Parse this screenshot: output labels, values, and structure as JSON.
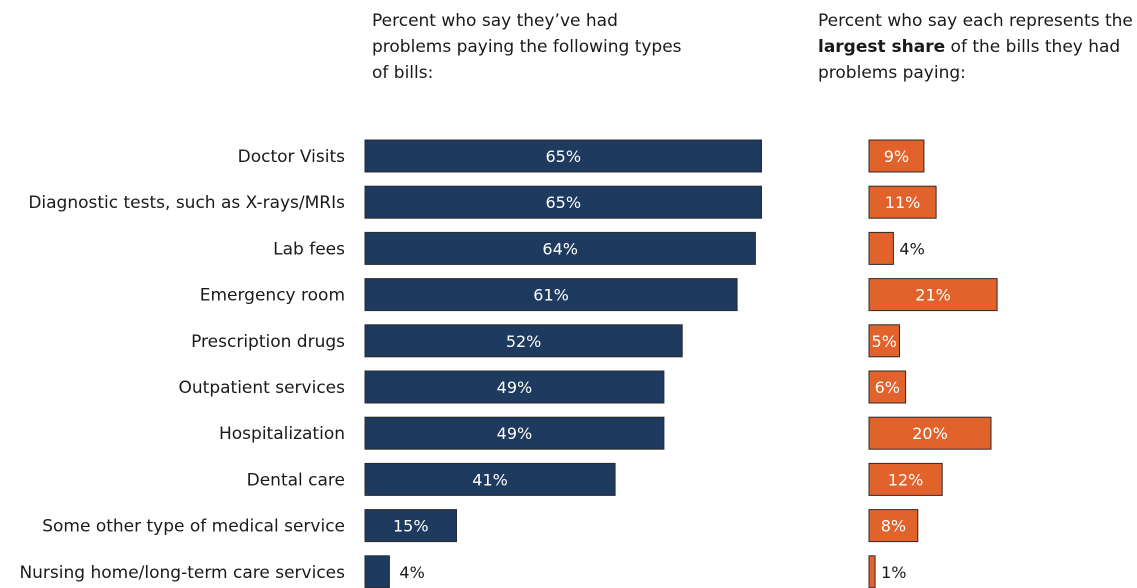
{
  "headings": {
    "left": "Percent who say they’ve had problems paying the following types of bills:",
    "right_pre": "Percent who say each represents the ",
    "right_bold": "largest share",
    "right_post": " of the bills they had problems paying:"
  },
  "colors": {
    "navy": "#1e3a5f",
    "orange": "#e2622b",
    "label_inside": "#ffffff",
    "label_outside": "#1a1a1a"
  },
  "chart_data": [
    {
      "type": "bar",
      "orientation": "horizontal",
      "categories": [
        "Doctor Visits",
        "Diagnostic tests, such as X-rays/MRIs",
        "Lab fees",
        "Emergency room",
        "Prescription drugs",
        "Outpatient services",
        "Hospitalization",
        "Dental care",
        "Some other type of medical service",
        "Nursing home/long-term care services"
      ],
      "values": [
        65,
        65,
        64,
        61,
        52,
        49,
        49,
        41,
        15,
        4
      ],
      "labels": [
        "65%",
        "65%",
        "64%",
        "61%",
        "52%",
        "49%",
        "49%",
        "41%",
        "15%",
        "4%"
      ],
      "color": "#1e3a5f"
    },
    {
      "type": "bar",
      "orientation": "horizontal",
      "categories": [
        "Doctor Visits",
        "Diagnostic tests, such as X-rays/MRIs",
        "Lab fees",
        "Emergency room",
        "Prescription drugs",
        "Outpatient services",
        "Hospitalization",
        "Dental care",
        "Some other type of medical service",
        "Nursing home/long-term care services"
      ],
      "values": [
        9,
        11,
        4,
        21,
        5,
        6,
        20,
        12,
        8,
        1
      ],
      "labels": [
        "9%",
        "11%",
        "4%",
        "21%",
        "5%",
        "6%",
        "20%",
        "12%",
        "8%",
        "1%"
      ],
      "color": "#e2622b"
    }
  ]
}
